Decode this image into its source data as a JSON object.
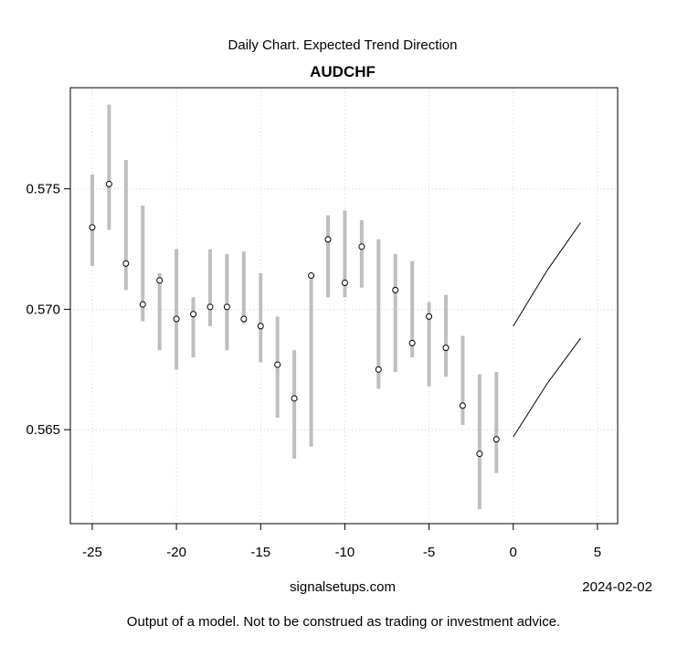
{
  "chart_data": {
    "type": "scatter",
    "subtitle": "Daily Chart. Expected Trend Direction",
    "title": "AUDCHF",
    "xlabel": "",
    "ylabel": "",
    "xlim": [
      -26.3,
      6.2
    ],
    "ylim": [
      0.5611,
      0.5792
    ],
    "x_ticks": [
      -25,
      -20,
      -15,
      -10,
      -5,
      0,
      5
    ],
    "x_tick_labels": [
      "-25",
      "-20",
      "-15",
      "-10",
      "-5",
      "0",
      "5"
    ],
    "y_ticks": [
      0.565,
      0.57,
      0.575
    ],
    "y_tick_labels": [
      "0.565",
      "0.570",
      "0.575"
    ],
    "grid": true,
    "series": [
      {
        "kind": "points_with_range",
        "points": [
          {
            "x": -25,
            "y": 0.5734,
            "low": 0.5718,
            "high": 0.5756
          },
          {
            "x": -24,
            "y": 0.5752,
            "low": 0.5733,
            "high": 0.5785
          },
          {
            "x": -23,
            "y": 0.5719,
            "low": 0.5708,
            "high": 0.5762
          },
          {
            "x": -22,
            "y": 0.5702,
            "low": 0.5695,
            "high": 0.5743
          },
          {
            "x": -21,
            "y": 0.5712,
            "low": 0.5683,
            "high": 0.5715
          },
          {
            "x": -20,
            "y": 0.5696,
            "low": 0.5675,
            "high": 0.5725
          },
          {
            "x": -19,
            "y": 0.5698,
            "low": 0.568,
            "high": 0.5705
          },
          {
            "x": -18,
            "y": 0.5701,
            "low": 0.5693,
            "high": 0.5725
          },
          {
            "x": -17,
            "y": 0.5701,
            "low": 0.5683,
            "high": 0.5723
          },
          {
            "x": -16,
            "y": 0.5696,
            "low": 0.5694,
            "high": 0.5724
          },
          {
            "x": -15,
            "y": 0.5693,
            "low": 0.5678,
            "high": 0.5715
          },
          {
            "x": -14,
            "y": 0.5677,
            "low": 0.5655,
            "high": 0.5697
          },
          {
            "x": -13,
            "y": 0.5663,
            "low": 0.5638,
            "high": 0.5683
          },
          {
            "x": -12,
            "y": 0.5714,
            "low": 0.5643,
            "high": 0.5714
          },
          {
            "x": -11,
            "y": 0.5729,
            "low": 0.5705,
            "high": 0.5739
          },
          {
            "x": -10,
            "y": 0.5711,
            "low": 0.5705,
            "high": 0.5741
          },
          {
            "x": -9,
            "y": 0.5726,
            "low": 0.5709,
            "high": 0.5737
          },
          {
            "x": -8,
            "y": 0.5675,
            "low": 0.5667,
            "high": 0.5729
          },
          {
            "x": -7,
            "y": 0.5708,
            "low": 0.5674,
            "high": 0.5723
          },
          {
            "x": -6,
            "y": 0.5686,
            "low": 0.568,
            "high": 0.572
          },
          {
            "x": -5,
            "y": 0.5697,
            "low": 0.5668,
            "high": 0.5703
          },
          {
            "x": -4,
            "y": 0.5684,
            "low": 0.5672,
            "high": 0.5706
          },
          {
            "x": -3,
            "y": 0.566,
            "low": 0.5652,
            "high": 0.5689
          },
          {
            "x": -2,
            "y": 0.564,
            "low": 0.5617,
            "high": 0.5673
          },
          {
            "x": -1,
            "y": 0.5646,
            "low": 0.5632,
            "high": 0.5674
          }
        ]
      },
      {
        "kind": "line",
        "points": [
          [
            0,
            0.5693
          ],
          [
            2,
            0.5716
          ],
          [
            4,
            0.5736
          ]
        ]
      },
      {
        "kind": "line",
        "points": [
          [
            0,
            0.5647
          ],
          [
            2,
            0.5669
          ],
          [
            4,
            0.5688
          ]
        ]
      }
    ],
    "colors": {
      "range": "#bebebe",
      "grid": "#d3d3d3",
      "line": "#000000",
      "point_fill": "#ffffff"
    }
  },
  "footer": {
    "source": "signalsetups.com",
    "date": "2024-02-02",
    "disclaimer": "Output of a model. Not to be construed as trading or investment advice."
  }
}
